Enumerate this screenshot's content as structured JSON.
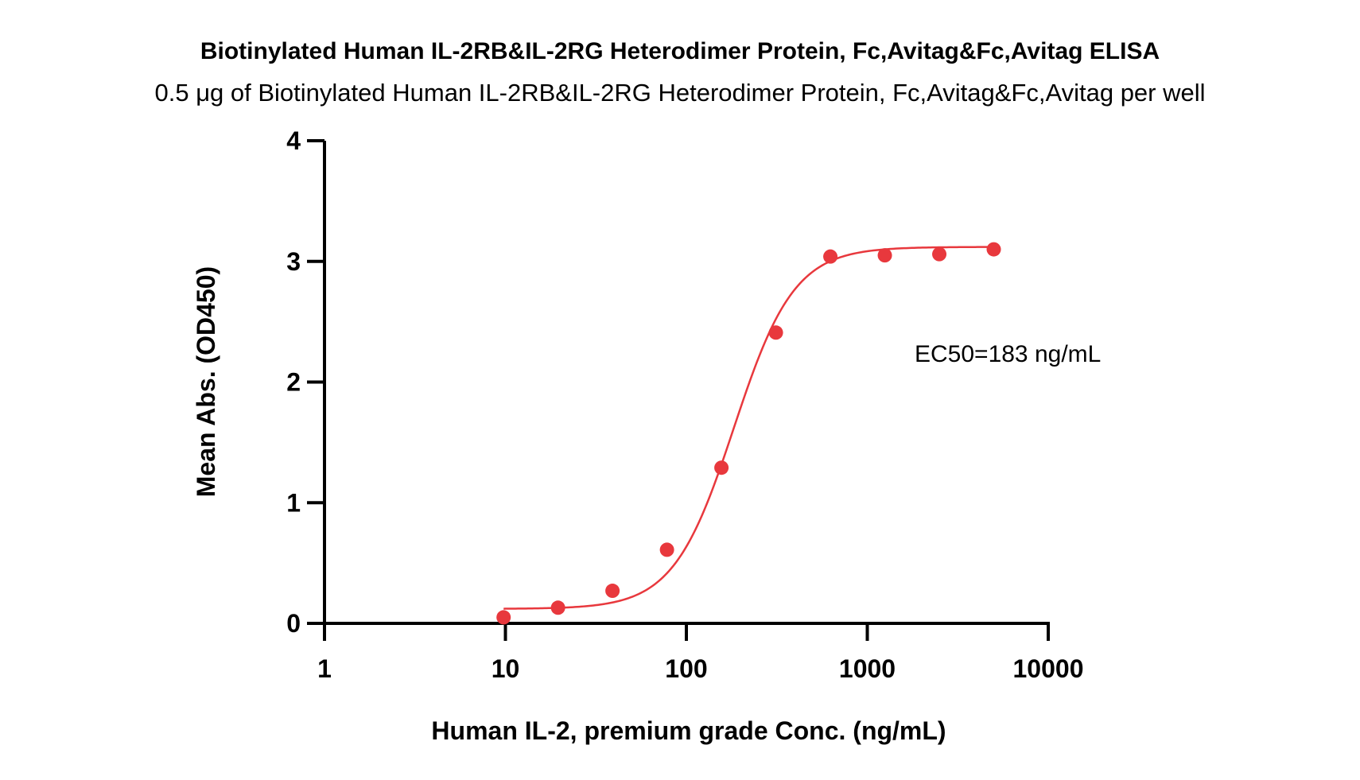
{
  "chart_data": {
    "type": "scatter",
    "title": "Biotinylated Human IL-2RB&IL-2RG Heterodimer Protein, Fc,Avitag&Fc,Avitag ELISA",
    "subtitle": "0.5 μg of Biotinylated Human IL-2RB&IL-2RG Heterodimer Protein, Fc,Avitag&Fc,Avitag per well",
    "xlabel": "Human IL-2, premium grade Conc. (ng/mL)",
    "ylabel": "Mean Abs. (OD450)",
    "x_scale": "log",
    "xlim": [
      1,
      10000
    ],
    "ylim": [
      0,
      4
    ],
    "x_ticks": [
      1,
      10,
      100,
      1000,
      10000
    ],
    "x_tick_labels": [
      "1",
      "10",
      "100",
      "1000",
      "10000"
    ],
    "y_ticks": [
      0,
      1,
      2,
      3,
      4
    ],
    "y_tick_labels": [
      "0",
      "1",
      "2",
      "3",
      "4"
    ],
    "grid": false,
    "color": "#e8383d",
    "series": [
      {
        "x": [
          9.77,
          19.53,
          39.06,
          78.13,
          156.25,
          312.5,
          625,
          1250,
          2500,
          5000
        ],
        "y": [
          0.05,
          0.13,
          0.27,
          0.61,
          1.29,
          2.41,
          3.04,
          3.05,
          3.06,
          3.1
        ]
      }
    ],
    "fit_curve": {
      "model": "4PL",
      "bottom": 0.12,
      "top": 3.12,
      "ec50": 183,
      "hill": 2.6
    },
    "annotations": [
      "EC50=183 ng/mL"
    ]
  }
}
